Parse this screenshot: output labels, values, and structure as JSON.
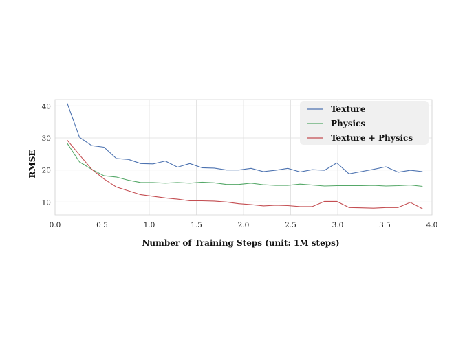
{
  "chart_data": {
    "type": "line",
    "xlabel": "Number of Training Steps (unit: 1M steps)",
    "ylabel": "RMSE",
    "xlim": [
      0.0,
      4.0
    ],
    "ylim": [
      6,
      42
    ],
    "xticks": [
      0.0,
      0.5,
      1.0,
      1.5,
      2.0,
      2.5,
      3.0,
      3.5,
      4.0
    ],
    "xtick_labels": [
      "0.0",
      "0.5",
      "1.0",
      "1.5",
      "2.0",
      "2.5",
      "3.0",
      "3.5",
      "4.0"
    ],
    "yticks": [
      10,
      20,
      30,
      40
    ],
    "ytick_labels": [
      "10",
      "20",
      "30",
      "40"
    ],
    "grid": true,
    "legend_position": "top-right",
    "x": [
      0.13,
      0.26,
      0.39,
      0.52,
      0.65,
      0.78,
      0.91,
      1.04,
      1.17,
      1.3,
      1.43,
      1.56,
      1.69,
      1.82,
      1.95,
      2.08,
      2.21,
      2.34,
      2.47,
      2.6,
      2.73,
      2.86,
      2.99,
      3.12,
      3.25,
      3.38,
      3.51,
      3.64,
      3.77,
      3.9
    ],
    "series": [
      {
        "name": "Texture",
        "color": "#4c72b0",
        "values": [
          40.8,
          30.2,
          27.6,
          27.1,
          23.6,
          23.3,
          22.0,
          21.9,
          22.8,
          20.9,
          22.0,
          20.7,
          20.6,
          20.0,
          20.0,
          20.5,
          19.5,
          19.9,
          20.5,
          19.4,
          20.1,
          19.9,
          22.2,
          18.8,
          19.5,
          20.2,
          21.0,
          19.3,
          19.9,
          19.5
        ]
      },
      {
        "name": "Physics",
        "color": "#55a868",
        "values": [
          28.3,
          22.5,
          20.2,
          18.2,
          17.8,
          16.8,
          16.1,
          16.1,
          15.9,
          16.1,
          15.9,
          16.2,
          16.0,
          15.5,
          15.5,
          15.9,
          15.4,
          15.2,
          15.2,
          15.6,
          15.3,
          15.0,
          15.1,
          15.1,
          15.1,
          15.2,
          15.0,
          15.1,
          15.3,
          14.9
        ]
      },
      {
        "name": "Texture + Physics",
        "color": "#c44e52",
        "values": [
          29.3,
          24.7,
          20.2,
          17.2,
          14.7,
          13.5,
          12.3,
          11.8,
          11.3,
          10.9,
          10.4,
          10.4,
          10.3,
          10.0,
          9.5,
          9.2,
          8.8,
          9.0,
          8.9,
          8.6,
          8.6,
          10.2,
          10.2,
          8.3,
          8.2,
          8.1,
          8.3,
          8.3,
          9.9,
          7.9
        ]
      }
    ]
  }
}
